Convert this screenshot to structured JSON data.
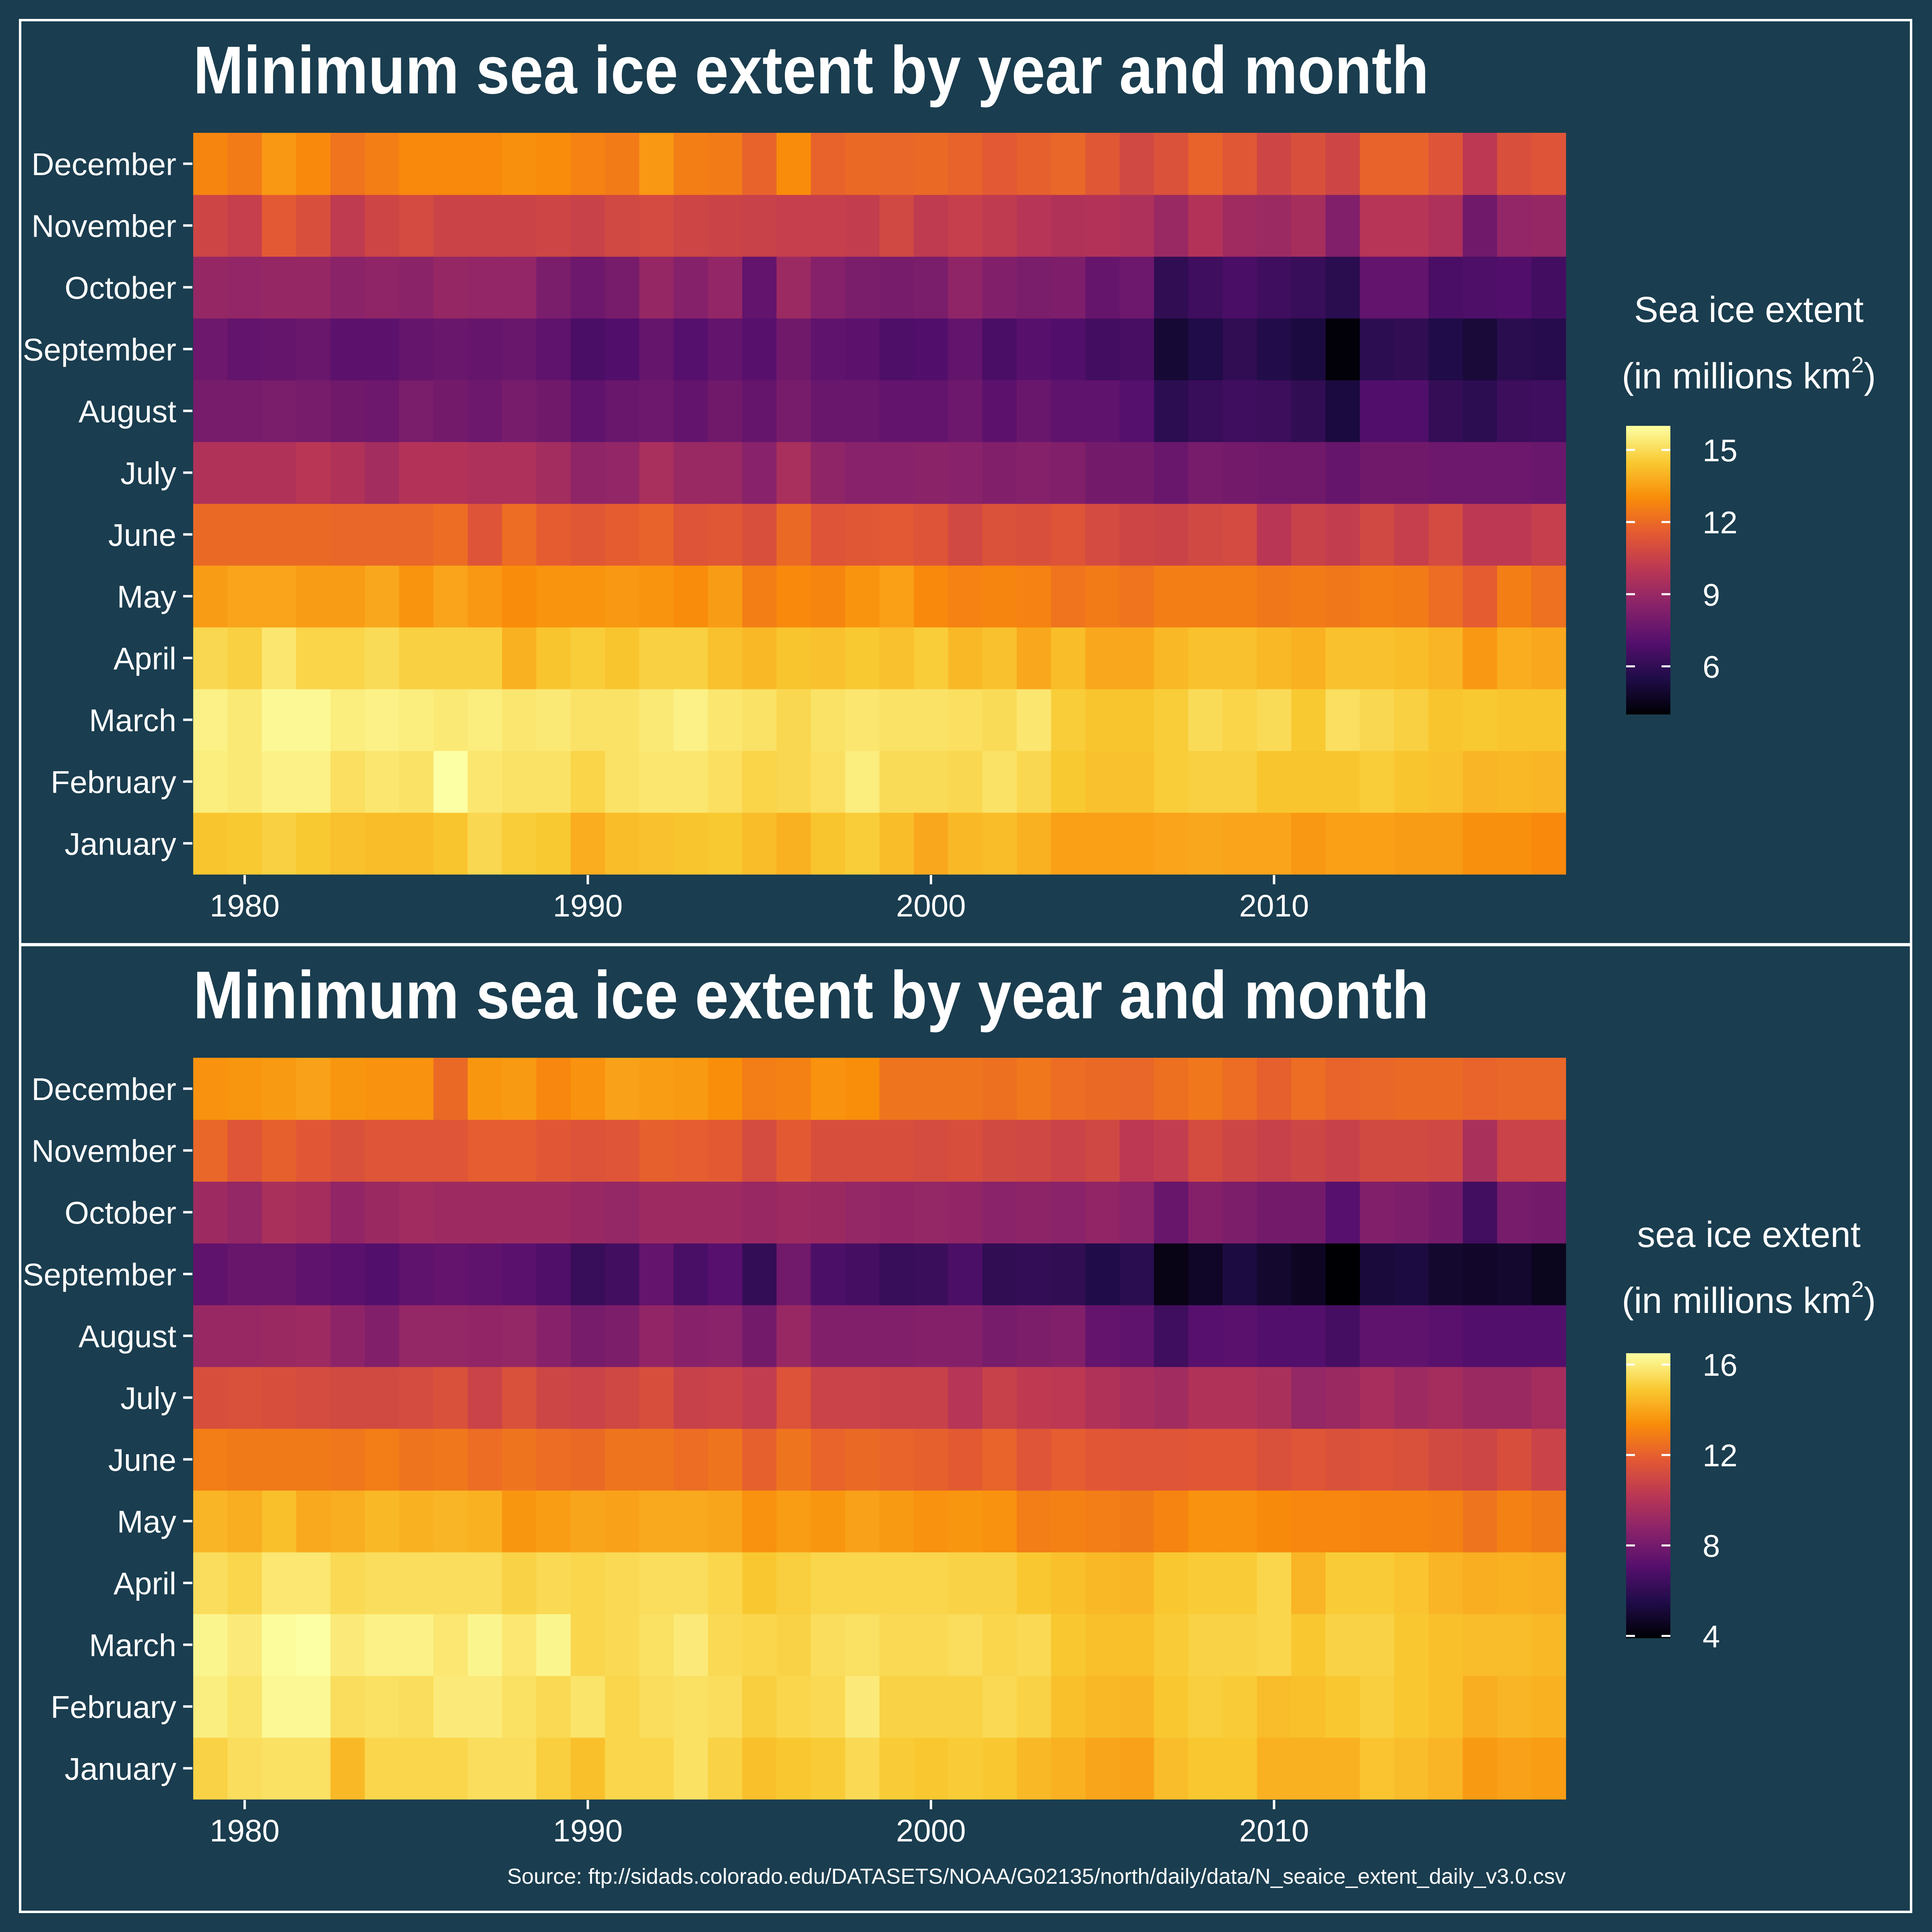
{
  "chart_data": [
    {
      "type": "heatmap",
      "title": "Minimum sea ice extent by year and month",
      "xlabel": "",
      "ylabel": "",
      "x_ticks": [
        1980,
        1990,
        2000,
        2010
      ],
      "legend": {
        "title": "Sea ice extent",
        "subtitle": "(in millions km",
        "superscript": "2",
        "close": ")",
        "ticks": [
          6,
          9,
          12,
          15
        ],
        "range": [
          4.0,
          16.0
        ],
        "placement": "right"
      },
      "months": [
        "January",
        "February",
        "March",
        "April",
        "May",
        "June",
        "July",
        "August",
        "September",
        "October",
        "November",
        "December"
      ],
      "years": [
        1979,
        1980,
        1981,
        1982,
        1983,
        1984,
        1985,
        1986,
        1987,
        1988,
        1989,
        1990,
        1991,
        1992,
        1993,
        1994,
        1995,
        1996,
        1997,
        1998,
        1999,
        2000,
        2001,
        2002,
        2003,
        2004,
        2005,
        2006,
        2007,
        2008,
        2009,
        2010,
        2011,
        2012,
        2013,
        2014,
        2015,
        2016,
        2017,
        2018
      ],
      "values": [
        [
          14.4,
          14.5,
          14.7,
          14.5,
          14.3,
          14.2,
          14.2,
          14.4,
          14.9,
          14.6,
          14.5,
          13.8,
          14.2,
          14.3,
          14.4,
          14.5,
          14.2,
          13.9,
          14.4,
          14.6,
          14.2,
          13.7,
          14.1,
          14.2,
          13.9,
          13.5,
          13.5,
          13.5,
          13.6,
          13.7,
          13.6,
          13.6,
          13.3,
          13.5,
          13.5,
          13.4,
          13.4,
          13.1,
          13.1,
          12.9
        ],
        [
          15.5,
          15.4,
          15.6,
          15.6,
          15.1,
          15.3,
          15.2,
          16.0,
          15.3,
          15.2,
          15.2,
          14.8,
          15.2,
          15.3,
          15.3,
          15.1,
          14.8,
          14.9,
          15.1,
          15.5,
          15.0,
          15.0,
          14.9,
          15.2,
          14.9,
          14.5,
          14.3,
          14.3,
          14.6,
          14.7,
          14.7,
          14.4,
          14.4,
          14.4,
          14.6,
          14.4,
          14.3,
          14.0,
          14.1,
          14.0
        ],
        [
          15.6,
          15.4,
          15.8,
          15.8,
          15.5,
          15.6,
          15.5,
          15.4,
          15.5,
          15.3,
          15.4,
          15.2,
          15.2,
          15.4,
          15.6,
          15.3,
          15.2,
          14.9,
          15.2,
          15.3,
          15.2,
          15.2,
          15.1,
          15.0,
          15.3,
          14.6,
          14.4,
          14.4,
          14.6,
          15.0,
          14.8,
          15.0,
          14.5,
          15.1,
          14.9,
          14.7,
          14.4,
          14.5,
          14.4,
          14.4
        ],
        [
          14.9,
          14.7,
          15.3,
          14.8,
          14.8,
          15.0,
          14.7,
          14.7,
          14.7,
          13.9,
          14.4,
          14.6,
          14.4,
          14.7,
          14.7,
          14.3,
          14.1,
          14.4,
          14.3,
          14.5,
          14.3,
          14.6,
          14.1,
          14.3,
          13.7,
          14.2,
          13.7,
          13.7,
          14.1,
          14.3,
          14.3,
          14.1,
          13.9,
          14.3,
          14.3,
          14.2,
          14.0,
          13.3,
          13.8,
          13.7
        ],
        [
          13.4,
          13.6,
          13.6,
          13.4,
          13.4,
          13.7,
          13.2,
          13.6,
          13.3,
          13.0,
          13.2,
          13.2,
          13.3,
          13.2,
          13.0,
          13.4,
          12.6,
          12.9,
          12.8,
          13.2,
          13.5,
          12.9,
          12.7,
          12.8,
          12.7,
          12.3,
          12.5,
          12.3,
          12.6,
          12.6,
          12.6,
          12.4,
          12.5,
          12.4,
          12.6,
          12.5,
          12.1,
          11.6,
          12.6,
          12.2
        ],
        [
          12.0,
          12.0,
          12.0,
          12.0,
          11.9,
          11.9,
          11.9,
          12.1,
          11.3,
          12.1,
          11.6,
          11.4,
          11.6,
          11.8,
          11.3,
          11.4,
          11.1,
          12.0,
          11.3,
          11.4,
          11.5,
          11.3,
          10.8,
          11.2,
          11.1,
          11.3,
          10.9,
          10.7,
          10.6,
          10.8,
          10.9,
          10.0,
          10.5,
          10.3,
          10.8,
          10.4,
          10.9,
          10.1,
          10.1,
          10.4
        ],
        [
          9.7,
          9.7,
          9.7,
          10.0,
          9.7,
          9.3,
          9.8,
          9.8,
          9.6,
          9.6,
          9.3,
          8.7,
          8.8,
          9.5,
          9.0,
          9.0,
          8.5,
          9.5,
          8.7,
          8.5,
          8.5,
          8.6,
          8.5,
          8.3,
          8.4,
          8.3,
          7.9,
          7.9,
          7.6,
          8.0,
          7.9,
          7.8,
          7.8,
          7.5,
          7.8,
          7.8,
          7.7,
          7.7,
          7.7,
          7.6
        ],
        [
          8.0,
          8.0,
          8.1,
          8.0,
          7.8,
          7.7,
          8.1,
          7.9,
          7.7,
          8.0,
          7.8,
          7.3,
          7.6,
          7.7,
          7.4,
          7.8,
          7.5,
          8.0,
          7.6,
          7.6,
          7.4,
          7.4,
          7.7,
          7.2,
          7.6,
          7.3,
          7.3,
          7.0,
          5.9,
          6.2,
          6.4,
          6.3,
          6.0,
          5.3,
          6.9,
          6.9,
          6.1,
          5.9,
          6.3,
          6.4
        ],
        [
          7.7,
          7.4,
          7.5,
          7.6,
          7.2,
          7.2,
          7.5,
          7.6,
          7.5,
          7.6,
          7.3,
          6.7,
          6.9,
          7.5,
          7.0,
          7.4,
          7.1,
          7.8,
          7.3,
          7.2,
          6.8,
          6.9,
          7.4,
          6.7,
          7.1,
          6.9,
          6.5,
          6.6,
          5.1,
          5.5,
          6.0,
          5.6,
          5.3,
          4.1,
          5.9,
          6.0,
          5.5,
          5.2,
          5.8,
          5.7
        ],
        [
          8.9,
          8.8,
          8.9,
          8.9,
          8.6,
          8.7,
          8.6,
          8.9,
          8.8,
          8.8,
          8.1,
          7.7,
          8.0,
          8.9,
          8.4,
          8.8,
          7.4,
          9.1,
          8.4,
          8.1,
          8.0,
          8.1,
          8.7,
          8.3,
          8.1,
          8.2,
          7.5,
          7.7,
          6.0,
          6.4,
          6.7,
          6.4,
          6.2,
          5.8,
          7.4,
          7.4,
          6.7,
          6.8,
          6.9,
          6.5
        ],
        [
          10.7,
          10.4,
          11.5,
          11.1,
          10.2,
          10.7,
          10.9,
          10.6,
          10.6,
          10.6,
          10.7,
          10.5,
          10.8,
          10.9,
          10.7,
          10.6,
          10.5,
          10.4,
          10.4,
          10.3,
          10.8,
          10.2,
          10.4,
          10.2,
          9.9,
          9.7,
          9.8,
          9.6,
          9.0,
          9.8,
          9.2,
          9.1,
          9.4,
          8.3,
          9.9,
          9.9,
          9.6,
          7.8,
          8.8,
          8.9
        ],
        [
          12.8,
          12.5,
          13.3,
          12.9,
          12.3,
          12.6,
          12.9,
          12.9,
          12.9,
          13.1,
          13.0,
          12.7,
          12.5,
          13.3,
          12.6,
          12.5,
          11.8,
          13.0,
          11.8,
          12.0,
          11.9,
          12.0,
          11.8,
          11.5,
          11.7,
          11.9,
          11.4,
          10.8,
          11.2,
          11.8,
          11.4,
          10.7,
          11.1,
          10.7,
          11.8,
          11.8,
          11.3,
          10.1,
          11.1,
          11.3
        ]
      ]
    },
    {
      "type": "heatmap",
      "title": "Minimum sea ice extent by year and month",
      "xlabel": "",
      "ylabel": "",
      "x_ticks": [
        1980,
        1990,
        2000,
        2010
      ],
      "legend": {
        "title": "sea ice extent",
        "subtitle": "(in millions km",
        "superscript": "2",
        "close": ")",
        "ticks": [
          4,
          8,
          12,
          16
        ],
        "range": [
          3.9,
          16.5
        ],
        "placement": "right"
      },
      "months": [
        "January",
        "February",
        "March",
        "April",
        "May",
        "June",
        "July",
        "August",
        "September",
        "October",
        "November",
        "December"
      ],
      "years": [
        1979,
        1980,
        1981,
        1982,
        1983,
        1984,
        1985,
        1986,
        1987,
        1988,
        1989,
        1990,
        1991,
        1992,
        1993,
        1994,
        1995,
        1996,
        1997,
        1998,
        1999,
        2000,
        2001,
        2002,
        2003,
        2004,
        2005,
        2006,
        2007,
        2008,
        2009,
        2010,
        2011,
        2012,
        2013,
        2014,
        2015,
        2016,
        2017,
        2018
      ],
      "values": [
        [
          15.2,
          15.5,
          15.6,
          15.6,
          14.5,
          15.3,
          15.3,
          15.3,
          15.5,
          15.5,
          15.1,
          14.7,
          15.3,
          15.3,
          15.6,
          15.2,
          14.7,
          14.9,
          15.0,
          15.4,
          15.0,
          14.9,
          15.0,
          14.9,
          14.5,
          14.3,
          14.0,
          13.9,
          14.6,
          14.9,
          14.9,
          14.3,
          14.3,
          14.3,
          14.8,
          14.6,
          14.4,
          13.7,
          13.9,
          13.8
        ],
        [
          16.0,
          15.7,
          16.3,
          16.3,
          15.5,
          15.6,
          15.5,
          15.9,
          15.9,
          15.6,
          15.4,
          15.7,
          15.3,
          15.5,
          15.6,
          15.5,
          15.1,
          15.3,
          15.4,
          15.9,
          15.2,
          15.2,
          15.2,
          15.4,
          15.2,
          14.7,
          14.5,
          14.4,
          14.9,
          15.1,
          15.0,
          14.6,
          14.7,
          14.9,
          15.1,
          14.9,
          14.7,
          14.2,
          14.4,
          14.3
        ],
        [
          16.2,
          15.9,
          16.4,
          16.5,
          15.9,
          16.1,
          16.1,
          15.8,
          16.2,
          15.8,
          16.2,
          15.3,
          15.4,
          15.6,
          15.9,
          15.4,
          15.3,
          15.2,
          15.5,
          15.6,
          15.4,
          15.4,
          15.5,
          15.3,
          15.4,
          14.9,
          14.7,
          14.7,
          15.0,
          15.2,
          15.2,
          15.3,
          14.9,
          15.2,
          15.2,
          14.9,
          14.7,
          14.6,
          14.6,
          14.5
        ],
        [
          15.5,
          15.3,
          15.8,
          15.8,
          15.4,
          15.5,
          15.5,
          15.5,
          15.5,
          15.2,
          15.4,
          15.3,
          15.4,
          15.5,
          15.5,
          15.3,
          14.9,
          15.1,
          15.3,
          15.3,
          15.3,
          15.3,
          15.2,
          15.2,
          14.9,
          14.7,
          14.5,
          14.4,
          14.9,
          15.0,
          15.0,
          15.3,
          14.4,
          15.0,
          15.0,
          14.8,
          14.4,
          14.2,
          14.3,
          14.2
        ],
        [
          14.4,
          14.2,
          14.7,
          14.1,
          14.2,
          14.5,
          14.3,
          14.4,
          14.3,
          13.6,
          13.8,
          14.0,
          13.9,
          14.1,
          14.1,
          14.0,
          13.5,
          13.8,
          13.6,
          13.9,
          13.7,
          13.5,
          13.6,
          13.5,
          12.9,
          13.0,
          12.9,
          12.8,
          13.1,
          13.5,
          13.5,
          13.3,
          13.2,
          13.2,
          13.1,
          13.1,
          13.0,
          12.6,
          13.0,
          12.8
        ],
        [
          12.9,
          12.8,
          12.8,
          12.8,
          12.7,
          12.9,
          12.6,
          12.7,
          12.4,
          12.6,
          12.4,
          12.3,
          12.6,
          12.6,
          12.4,
          12.6,
          12.0,
          12.6,
          12.1,
          12.3,
          12.1,
          12.0,
          11.8,
          12.1,
          11.6,
          11.9,
          11.7,
          11.6,
          11.6,
          11.7,
          11.7,
          11.4,
          11.6,
          11.4,
          11.5,
          11.4,
          11.1,
          10.9,
          11.3,
          10.8
        ],
        [
          11.3,
          11.4,
          11.3,
          11.2,
          11.1,
          11.1,
          11.2,
          11.4,
          10.8,
          11.4,
          10.9,
          10.8,
          11.0,
          11.3,
          10.7,
          10.8,
          10.5,
          11.5,
          10.8,
          10.8,
          10.7,
          10.7,
          10.1,
          10.7,
          10.4,
          10.3,
          9.9,
          9.6,
          9.4,
          9.9,
          9.9,
          9.7,
          9.0,
          9.2,
          9.6,
          9.3,
          9.5,
          9.2,
          9.2,
          9.5
        ],
        [
          9.1,
          9.1,
          9.2,
          9.3,
          8.8,
          8.4,
          9.0,
          9.0,
          8.9,
          9.0,
          8.6,
          8.1,
          8.3,
          8.9,
          8.6,
          8.7,
          8.0,
          9.1,
          8.4,
          8.4,
          8.4,
          8.5,
          8.5,
          8.1,
          8.3,
          8.4,
          7.5,
          7.4,
          6.4,
          7.1,
          7.2,
          7.0,
          7.0,
          6.6,
          7.4,
          7.4,
          7.2,
          7.0,
          7.0,
          7.0
        ],
        [
          7.4,
          7.6,
          7.6,
          7.4,
          7.2,
          7.0,
          7.4,
          7.5,
          7.4,
          7.2,
          6.9,
          6.2,
          6.5,
          7.5,
          6.7,
          7.1,
          6.1,
          7.9,
          6.8,
          6.6,
          6.2,
          6.3,
          6.8,
          6.0,
          6.1,
          6.0,
          5.5,
          5.8,
          4.3,
          4.7,
          5.3,
          4.9,
          4.6,
          3.6,
          5.2,
          5.3,
          4.9,
          4.8,
          4.9,
          4.5
        ],
        [
          9.3,
          9.0,
          9.7,
          9.5,
          8.9,
          9.2,
          9.4,
          9.3,
          9.3,
          9.3,
          9.3,
          9.1,
          9.0,
          9.3,
          9.3,
          9.3,
          9.1,
          9.3,
          9.2,
          9.0,
          8.9,
          9.0,
          8.9,
          8.7,
          8.8,
          8.7,
          8.9,
          8.7,
          7.6,
          8.5,
          8.3,
          8.0,
          8.0,
          7.1,
          8.4,
          8.3,
          8.0,
          6.5,
          8.1,
          8.0
        ],
        [
          12.2,
          11.6,
          12.0,
          11.7,
          11.4,
          11.6,
          11.6,
          11.6,
          11.9,
          11.9,
          11.7,
          11.5,
          11.6,
          12.0,
          11.9,
          11.8,
          11.2,
          11.8,
          11.3,
          11.3,
          11.3,
          11.2,
          11.3,
          11.1,
          11.0,
          10.8,
          11.0,
          10.3,
          10.5,
          11.2,
          10.9,
          10.7,
          10.9,
          10.7,
          11.1,
          11.1,
          11.0,
          9.7,
          10.8,
          10.8
        ],
        [
          13.5,
          13.6,
          13.7,
          13.9,
          13.6,
          13.5,
          13.5,
          12.3,
          13.6,
          13.7,
          13.2,
          13.5,
          13.9,
          13.8,
          13.7,
          13.4,
          12.9,
          13.0,
          13.5,
          13.4,
          12.6,
          12.6,
          12.6,
          12.5,
          12.7,
          12.4,
          12.3,
          12.2,
          12.5,
          12.7,
          12.4,
          12.0,
          12.4,
          12.1,
          12.2,
          12.3,
          12.3,
          12.1,
          12.2,
          12.2
        ]
      ]
    }
  ],
  "source": "Source: ftp://sidads.colorado.edu/DATASETS/NOAA/G02135/north/daily/data/N_seaice_extent_daily_v3.0.csv",
  "colors": {
    "background": "#1a3d4f",
    "frame": "#ffffff",
    "text": "#ffffff",
    "colormap": "inferno"
  }
}
